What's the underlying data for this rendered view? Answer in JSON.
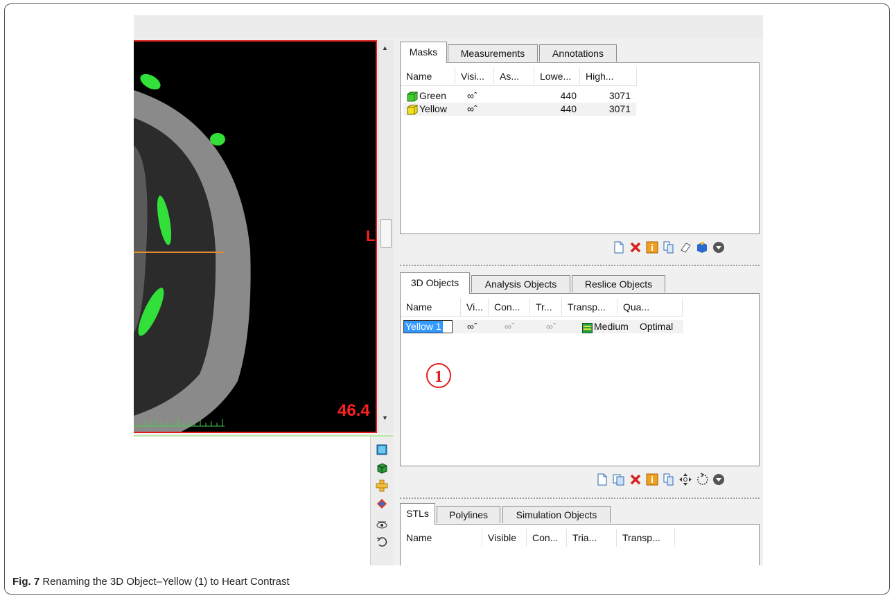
{
  "viewer": {
    "side_label": "L",
    "value_label": "46.4"
  },
  "masks_pane": {
    "tabs": [
      "Masks",
      "Measurements",
      "Annotations"
    ],
    "columns": [
      "Name",
      "Visi...",
      "As...",
      "Lowe...",
      "High..."
    ],
    "rows": [
      {
        "name": "Green",
        "color": "#44cc33",
        "visible": true,
        "lower": "440",
        "higher": "3071"
      },
      {
        "name": "Yellow",
        "color": "#f0e020",
        "visible": true,
        "lower": "440",
        "higher": "3071"
      }
    ]
  },
  "objects_pane": {
    "tabs": [
      "3D Objects",
      "Analysis Objects",
      "Reslice Objects"
    ],
    "columns": [
      "Name",
      "Vi...",
      "Con...",
      "Tr...",
      "Transp...",
      "Qua..."
    ],
    "row": {
      "name": "Yellow 1",
      "transparency": "Medium",
      "quality": "Optimal"
    }
  },
  "callout": "1",
  "stls_pane": {
    "tabs": [
      "STLs",
      "Polylines",
      "Simulation Objects"
    ],
    "columns": [
      "Name",
      "Visible",
      "Con...",
      "Tria...",
      "Transp..."
    ]
  },
  "caption": {
    "label": "Fig. 7",
    "text": "Renaming the 3D Object–Yellow (1) to Heart Contrast"
  },
  "icons": [
    "new-icon",
    "delete-icon",
    "info-icon",
    "properties-icon",
    "eraser-icon",
    "3d-mask-icon",
    "more-icon",
    "duplicate-icon",
    "move-icon",
    "rotate-icon",
    "view-2d-icon",
    "view-3d-icon",
    "reslice-icon",
    "camera-icon",
    "visibility-icon",
    "undo-icon"
  ],
  "colors": {
    "viewer_border": "#e02020",
    "mask_green": "#44cc33",
    "mask_yellow": "#f0e020",
    "selection": "#3399ff"
  }
}
